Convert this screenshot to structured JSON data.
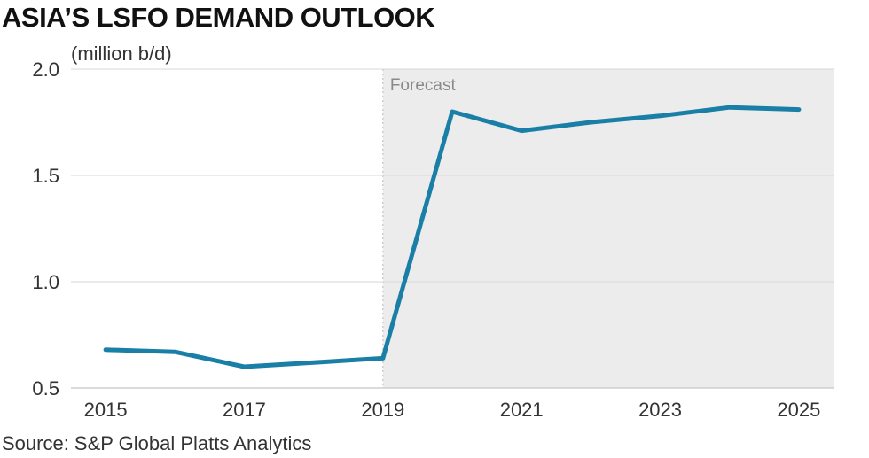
{
  "title": "ASIA’S LSFO DEMAND OUTLOOK",
  "unit_label": "(million b/d)",
  "source": "Source: S&P Global Platts Analytics",
  "colors": {
    "line": "#1a7fa6",
    "forecast_shade": "#ececec",
    "grid": "#d7d7d7",
    "axis": "#cfcfcf",
    "forecast_divider": "#bbbbbb"
  },
  "chart_data": {
    "type": "line",
    "title": "ASIA’S LSFO DEMAND OUTLOOK",
    "xlabel": "",
    "ylabel": "(million b/d)",
    "x": [
      2015,
      2016,
      2017,
      2018,
      2019,
      2020,
      2021,
      2022,
      2023,
      2024,
      2025
    ],
    "series": [
      {
        "name": "LSFO demand",
        "values": [
          0.68,
          0.67,
          0.6,
          0.62,
          0.64,
          1.8,
          1.71,
          1.75,
          1.78,
          1.82,
          1.81
        ]
      }
    ],
    "xlim": [
      2014.5,
      2025.5
    ],
    "ylim": [
      0.5,
      2.0
    ],
    "y_ticks": [
      0.5,
      1.0,
      1.5,
      2.0
    ],
    "y_tick_labels": [
      "0.5",
      "1.0",
      "1.5",
      "2.0"
    ],
    "x_ticks": [
      2015,
      2017,
      2019,
      2021,
      2023,
      2025
    ],
    "x_tick_labels": [
      "2015",
      "2017",
      "2019",
      "2021",
      "2023",
      "2025"
    ],
    "forecast_start": 2019,
    "forecast_label": "Forecast",
    "grid": true
  }
}
